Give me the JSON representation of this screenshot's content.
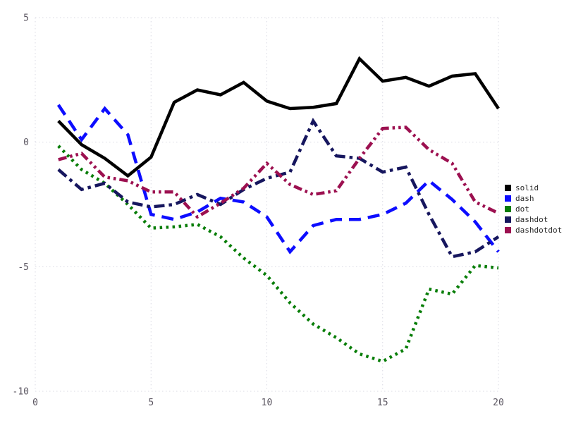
{
  "chart_data": {
    "type": "line",
    "title": "",
    "xlabel": "",
    "ylabel": "",
    "grid": true,
    "legend_position": "right",
    "xlim": [
      0,
      20
    ],
    "ylim": [
      -10,
      5
    ],
    "xticks": [
      0,
      5,
      10,
      15,
      20
    ],
    "yticks": [
      5,
      0,
      -5,
      -10
    ],
    "x": [
      1,
      2,
      3,
      4,
      5,
      6,
      7,
      8,
      9,
      10,
      11,
      12,
      13,
      14,
      15,
      16,
      17,
      18,
      19,
      20
    ],
    "series": [
      {
        "name": "solid",
        "color": "#000000",
        "dash": "solid",
        "values": [
          0.85,
          -0.1,
          -0.65,
          -1.35,
          -0.6,
          1.6,
          2.1,
          1.9,
          2.4,
          1.65,
          1.35,
          1.4,
          1.55,
          3.35,
          2.45,
          2.6,
          2.25,
          2.65,
          2.75,
          1.35
        ]
      },
      {
        "name": "dash",
        "color": "#0d0dff",
        "dash": "dash",
        "values": [
          1.5,
          0.1,
          1.35,
          0.3,
          -2.9,
          -3.1,
          -2.8,
          -2.25,
          -2.4,
          -3.0,
          -4.4,
          -3.35,
          -3.1,
          -3.1,
          -2.9,
          -2.45,
          -1.55,
          -2.3,
          -3.2,
          -4.4
        ]
      },
      {
        "name": "dot",
        "color": "#077d07",
        "dash": "dot",
        "values": [
          -0.15,
          -1.1,
          -1.65,
          -2.5,
          -3.45,
          -3.4,
          -3.3,
          -3.8,
          -4.65,
          -5.35,
          -6.45,
          -7.3,
          -7.85,
          -8.5,
          -8.8,
          -8.3,
          -5.9,
          -6.1,
          -4.95,
          -5.05
        ]
      },
      {
        "name": "dashdot",
        "color": "#16165e",
        "dash": "dashdot",
        "values": [
          -1.1,
          -1.9,
          -1.65,
          -2.4,
          -2.6,
          -2.5,
          -2.1,
          -2.5,
          -1.9,
          -1.45,
          -1.2,
          0.85,
          -0.55,
          -0.65,
          -1.2,
          -1.0,
          -2.9,
          -4.6,
          -4.4,
          -3.8
        ]
      },
      {
        "name": "dashdotdot",
        "color": "#9c1050",
        "dash": "dashdotdot",
        "values": [
          -0.7,
          -0.45,
          -1.4,
          -1.55,
          -2.0,
          -2.0,
          -3.0,
          -2.45,
          -1.85,
          -0.85,
          -1.7,
          -2.1,
          -1.95,
          -0.65,
          0.55,
          0.6,
          -0.3,
          -0.85,
          -2.4,
          -2.85
        ]
      }
    ],
    "grid_color": "#d9d9e3"
  }
}
